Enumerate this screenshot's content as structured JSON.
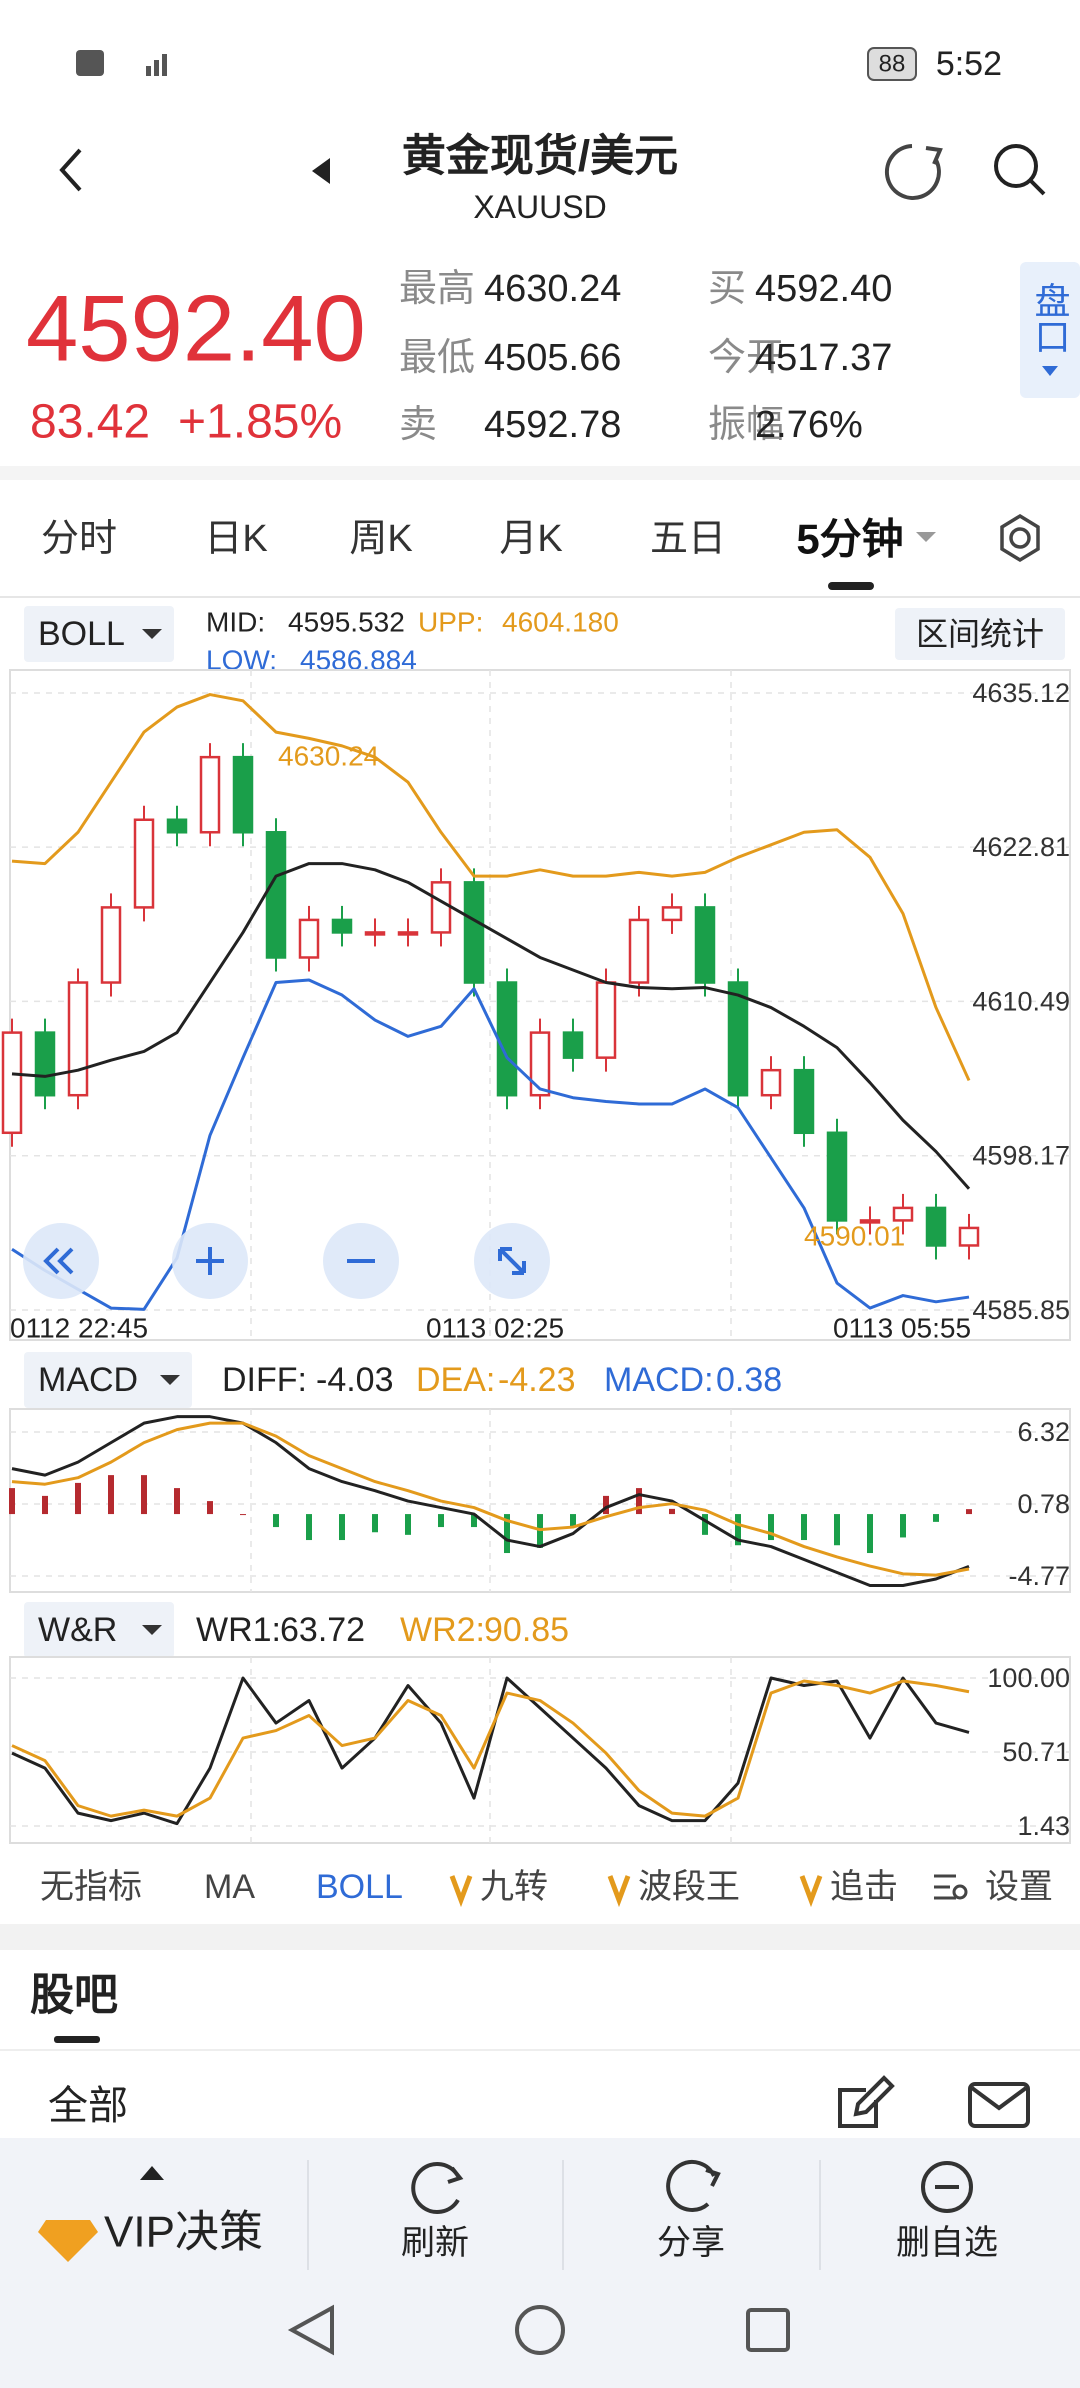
{
  "status_bar": {
    "time": "5:52",
    "battery": "88"
  },
  "header": {
    "title": "黄金现货/美元",
    "subtitle": "XAUUSD"
  },
  "quote": {
    "price": "4592.40",
    "change": "83.42",
    "change_pct": "+1.85%",
    "stats": [
      {
        "label": "最高",
        "value": "4630.24"
      },
      {
        "label": "买",
        "value": "4592.40"
      },
      {
        "label": "最低",
        "value": "4505.66"
      },
      {
        "label": "今开",
        "value": "4517.37"
      },
      {
        "label": "卖",
        "value": "4592.78"
      },
      {
        "label": "振幅",
        "value": "2.76%"
      }
    ],
    "side_button": "盘口"
  },
  "tabs": [
    "分时",
    "日K",
    "周K",
    "月K",
    "五日",
    "5分钟"
  ],
  "active_tab": 5,
  "main_chart": {
    "type": "candlestick",
    "indicator": "BOLL",
    "range_button": "区间统计",
    "legend": [
      {
        "label": "MID:",
        "value": "4595.532",
        "color": "#222222"
      },
      {
        "label": "UPP:",
        "value": "4604.180",
        "color": "#e39a1c"
      },
      {
        "label": "LOW:",
        "value": "4586.884",
        "color": "#2f6bd6"
      }
    ],
    "up_color": "#d9343a",
    "down_color": "#1a9f4a",
    "mid_color": "#222222",
    "upper_color": "#e39a1c",
    "lower_color": "#2f6bd6",
    "ylim": [
      4583.45,
      4636.96
    ],
    "yticks": [
      4635.12,
      4622.81,
      4610.49,
      4598.17,
      4585.85
    ],
    "x_labels": [
      "0112  22:45",
      "0113  02:25",
      "0113  05:55"
    ],
    "annotations": [
      "4630.24",
      "4590.01"
    ],
    "opens": [
      4600,
      4608,
      4603,
      4612,
      4618,
      4625,
      4624,
      4630,
      4624,
      4614,
      4617,
      4616,
      4616,
      4616,
      4620,
      4612,
      4603,
      4608,
      4606,
      4612,
      4617,
      4618,
      4612,
      4603,
      4605,
      4600,
      4593,
      4593,
      4594,
      4591
    ],
    "closes": [
      4608,
      4603,
      4612,
      4618,
      4625,
      4624,
      4630,
      4624,
      4614,
      4617,
      4616,
      4616,
      4616,
      4620,
      4612,
      4603,
      4608,
      4606,
      4612,
      4617,
      4618,
      4612,
      4603,
      4605,
      4600,
      4593,
      4593,
      4594,
      4591,
      4592.4
    ],
    "upper": [
      4621.7,
      4621.5,
      4624,
      4628,
      4632,
      4634,
      4635,
      4634.5,
      4632,
      4631.5,
      4630.9,
      4630,
      4628,
      4624,
      4620.5,
      4620.5,
      4621,
      4620.5,
      4620.5,
      4620.8,
      4620.5,
      4620.8,
      4622,
      4623,
      4624,
      4624.2,
      4622,
      4617.5,
      4610,
      4604.18
    ],
    "mid": [
      4604.7,
      4604.5,
      4605,
      4605.8,
      4606.5,
      4608,
      4612,
      4616,
      4620.5,
      4621.5,
      4621.5,
      4621,
      4620,
      4618.5,
      4617,
      4615.5,
      4614,
      4613,
      4612,
      4611.6,
      4611.5,
      4611.6,
      4611,
      4610,
      4608.5,
      4606.8,
      4604,
      4601,
      4598.5,
      4595.53
    ],
    "lower": [
      4590.7,
      4589,
      4587.5,
      4586,
      4585.9,
      4590,
      4599.8,
      4606,
      4612,
      4612.2,
      4611,
      4609,
      4607.7,
      4608.5,
      4611.5,
      4606,
      4603.5,
      4602.8,
      4602.5,
      4602.3,
      4602.3,
      4603.5,
      4602,
      4598,
      4594,
      4588,
      4586,
      4587,
      4586.5,
      4586.88
    ]
  },
  "macd": {
    "type": "macd",
    "indicator": "MACD",
    "legend": [
      {
        "label": "DIFF:",
        "value": "-4.03",
        "color": "#222222"
      },
      {
        "label": "DEA:",
        "value": "-4.23",
        "color": "#e39a1c"
      },
      {
        "label": "MACD:",
        "value": "0.38",
        "color": "#2f6bd6"
      }
    ],
    "ylim": [
      -6.0,
      8.09
    ],
    "yticks": [
      6.32,
      0.78,
      -4.77
    ],
    "diff_color": "#222222",
    "dea_color": "#e39a1c",
    "up_color": "#b52a2f",
    "down_color": "#1a9f4a",
    "diff": [
      3.5,
      3.0,
      4.0,
      5.5,
      7.0,
      7.5,
      7.5,
      7.0,
      5.5,
      3.5,
      2.5,
      1.8,
      1.0,
      0.5,
      0.0,
      -2.0,
      -2.5,
      -1.5,
      0.5,
      1.5,
      1.0,
      -0.5,
      -2.0,
      -2.5,
      -3.5,
      -4.5,
      -5.5,
      -5.5,
      -5.0,
      -4.03
    ],
    "dea": [
      2.5,
      2.3,
      2.8,
      4.0,
      5.5,
      6.5,
      7.0,
      7.0,
      6.0,
      4.5,
      3.5,
      2.5,
      1.8,
      1.0,
      0.5,
      -0.5,
      -1.2,
      -1.0,
      -0.2,
      0.5,
      0.8,
      0.3,
      -0.8,
      -1.5,
      -2.5,
      -3.3,
      -4.0,
      -4.6,
      -4.7,
      -4.23
    ],
    "hist": [
      2,
      1.4,
      2.4,
      3,
      3,
      2,
      1,
      0,
      -1,
      -2,
      -2,
      -1.4,
      -1.6,
      -1.0,
      -1.0,
      -3,
      -2.6,
      -1.0,
      1.4,
      2,
      0.4,
      -1.6,
      -2.4,
      -2,
      -2,
      -2.4,
      -3,
      -1.8,
      -0.6,
      0.38
    ]
  },
  "wr": {
    "type": "line",
    "indicator": "W&R",
    "legend": [
      {
        "label": "WR1:",
        "value": "63.72",
        "color": "#222222"
      },
      {
        "label": "WR2:",
        "value": "90.85",
        "color": "#e39a1c"
      }
    ],
    "ylim": [
      -9.9,
      114
    ],
    "yticks": [
      {
        "value": 100,
        "label": "100.00"
      },
      50.71,
      1.43
    ],
    "wr1_color": "#222222",
    "wr2_color": "#e39a1c",
    "wr1": [
      50,
      40,
      10,
      5,
      10,
      3,
      40,
      100,
      70,
      85,
      40,
      60,
      95,
      70,
      20,
      100,
      80,
      60,
      40,
      15,
      5,
      5,
      30,
      100,
      95,
      98,
      60,
      100,
      70,
      63.72
    ],
    "wr2": [
      55,
      45,
      15,
      8,
      12,
      8,
      20,
      60,
      65,
      75,
      55,
      60,
      85,
      75,
      40,
      90,
      85,
      70,
      50,
      25,
      10,
      8,
      20,
      90,
      98,
      95,
      90,
      98,
      95,
      90.85
    ]
  },
  "indicator_tabs": [
    "无指标",
    "MA",
    "BOLL",
    "九转",
    "波段王",
    "追击"
  ],
  "active_indicator": 2,
  "settings": "设置",
  "forum": {
    "title": "股吧",
    "filter": "全部"
  },
  "toolbar": [
    "VIP决策",
    "刷新",
    "分享",
    "删自选"
  ]
}
